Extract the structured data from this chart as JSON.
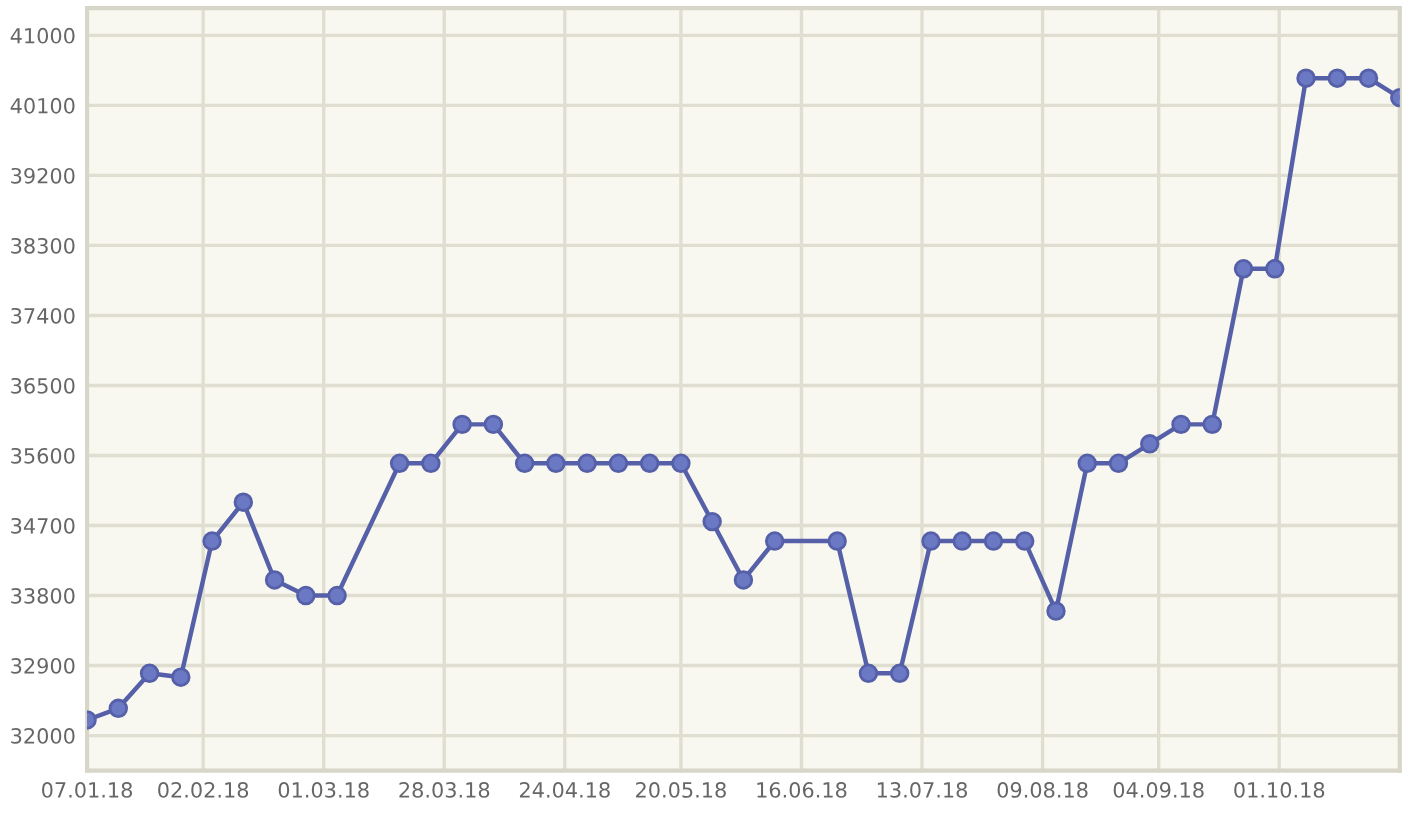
{
  "chart_data": {
    "type": "line",
    "x": [
      "2018-01-07",
      "2018-01-14",
      "2018-01-21",
      "2018-01-28",
      "2018-02-04",
      "2018-02-11",
      "2018-02-18",
      "2018-02-25",
      "2018-03-04",
      "2018-03-18",
      "2018-03-25",
      "2018-04-01",
      "2018-04-08",
      "2018-04-15",
      "2018-04-22",
      "2018-04-29",
      "2018-05-06",
      "2018-05-13",
      "2018-05-20",
      "2018-05-27",
      "2018-06-03",
      "2018-06-10",
      "2018-06-24",
      "2018-07-01",
      "2018-07-08",
      "2018-07-15",
      "2018-07-22",
      "2018-07-29",
      "2018-08-05",
      "2018-08-12",
      "2018-08-19",
      "2018-08-26",
      "2018-09-02",
      "2018-09-09",
      "2018-09-16",
      "2018-09-23",
      "2018-09-30",
      "2018-10-07",
      "2018-10-14",
      "2018-10-21",
      "2018-10-28"
    ],
    "series": [
      {
        "color": "#5560a8",
        "values": [
          32200,
          32350,
          32800,
          32750,
          34500,
          35000,
          34000,
          33800,
          33800,
          35500,
          35500,
          36000,
          36000,
          35500,
          35500,
          35500,
          35500,
          35500,
          35500,
          34750,
          34000,
          34500,
          34500,
          32800,
          32800,
          34500,
          34500,
          34500,
          34500,
          33600,
          35500,
          35500,
          35750,
          36000,
          36000,
          38000,
          38000,
          40450,
          40450,
          40450,
          40200
        ]
      }
    ],
    "xlim": [
      "2018-01-07",
      "2018-10-28"
    ],
    "xticks": [
      {
        "value": "2018-01-07",
        "label": "07.01.18"
      },
      {
        "value": "2018-02-02",
        "label": "02.02.18"
      },
      {
        "value": "2018-03-01",
        "label": "01.03.18"
      },
      {
        "value": "2018-03-28",
        "label": "28.03.18"
      },
      {
        "value": "2018-04-24",
        "label": "24.04.18"
      },
      {
        "value": "2018-05-20",
        "label": "20.05.18"
      },
      {
        "value": "2018-06-16",
        "label": "16.06.18"
      },
      {
        "value": "2018-07-13",
        "label": "13.07.18"
      },
      {
        "value": "2018-08-09",
        "label": "09.08.18"
      },
      {
        "value": "2018-09-04",
        "label": "04.09.18"
      },
      {
        "value": "2018-10-01",
        "label": "01.10.18"
      }
    ],
    "ylim": [
      31550,
      41350
    ],
    "yticks": [
      32000,
      32900,
      33800,
      34700,
      35600,
      36500,
      37400,
      38300,
      39200,
      40100,
      41000
    ],
    "grid": true,
    "marker": "circle",
    "line_style": "solid"
  }
}
